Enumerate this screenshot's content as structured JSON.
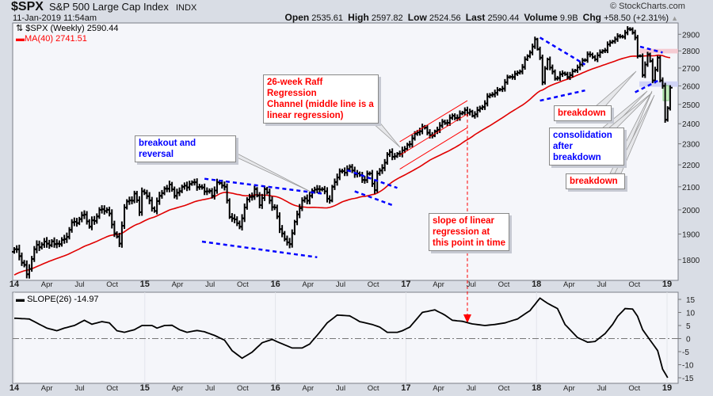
{
  "header": {
    "symbol": "$SPX",
    "name": "S&P 500 Large Cap Index",
    "exchange": "INDX",
    "datetime": "11-Jan-2019 11:54am",
    "copyright": "© StockCharts.com",
    "quote": {
      "open_label": "Open",
      "open": "2535.61",
      "high_label": "High",
      "high": "2597.82",
      "low_label": "Low",
      "low": "2524.56",
      "last_label": "Last",
      "last": "2590.44",
      "volume_label": "Volume",
      "volume": "9.9B",
      "chg_label": "Chg",
      "chg": "+58.50 (+2.31%)",
      "chg_icon": "up-triangle-icon"
    }
  },
  "legend": {
    "price": "$SPX (Weekly) 2590.44",
    "ma": "MA(40) 2741.51",
    "slope": "SLOPE(26) -14.97"
  },
  "colors": {
    "price": "#000000",
    "ma": "#e00000",
    "trend": "#0000ff",
    "channel": "#ff0000",
    "plot_bg": "#f5f6fa"
  },
  "annotations": {
    "raff": [
      "26-week Raff Regression",
      "Channel (middle line is a",
      "linear regression)"
    ],
    "breakout": "breakout and reversal",
    "slope_note": [
      "slope of linear",
      "regression at",
      "this point in time"
    ],
    "breakdown1": "breakdown",
    "consolidation": [
      "consolidation",
      "after breakdown"
    ],
    "breakdown2": "breakdown"
  },
  "chart_data": [
    {
      "type": "ohlc",
      "title": "$SPX (Weekly)",
      "scale": "log",
      "ylim": [
        1720,
        2960
      ],
      "yticks": [
        1800,
        1900,
        2000,
        2100,
        2200,
        2300,
        2400,
        2500,
        2600,
        2700,
        2800,
        2900
      ],
      "xticks": [
        "14",
        "Apr",
        "Jul",
        "Oct",
        "15",
        "Apr",
        "Jul",
        "Oct",
        "16",
        "Apr",
        "Jul",
        "Oct",
        "17",
        "Apr",
        "Jul",
        "Oct",
        "18",
        "Apr",
        "Jul",
        "Oct",
        "19"
      ],
      "x_unit": "weeks since first week of Jan 2014",
      "close_keypoints": [
        [
          0,
          1840
        ],
        [
          4,
          1780
        ],
        [
          5,
          1745
        ],
        [
          8,
          1840
        ],
        [
          12,
          1870
        ],
        [
          16,
          1860
        ],
        [
          20,
          1880
        ],
        [
          24,
          1950
        ],
        [
          28,
          1980
        ],
        [
          30,
          1930
        ],
        [
          34,
          2000
        ],
        [
          37,
          2000
        ],
        [
          41,
          1890
        ],
        [
          42,
          1862
        ],
        [
          44,
          2010
        ],
        [
          48,
          2070
        ],
        [
          50,
          1990
        ],
        [
          51,
          2080
        ],
        [
          54,
          2040
        ],
        [
          56,
          1995
        ],
        [
          58,
          2060
        ],
        [
          62,
          2110
        ],
        [
          64,
          2060
        ],
        [
          67,
          2100
        ],
        [
          71,
          2120
        ],
        [
          74,
          2100
        ],
        [
          77,
          2080
        ],
        [
          79,
          2060
        ],
        [
          81,
          2120
        ],
        [
          84,
          2100
        ],
        [
          86,
          1970
        ],
        [
          88,
          1960
        ],
        [
          90,
          1930
        ],
        [
          92,
          2010
        ],
        [
          96,
          2090
        ],
        [
          98,
          2020
        ],
        [
          100,
          2090
        ],
        [
          102,
          2040
        ],
        [
          104,
          2010
        ],
        [
          106,
          1920
        ],
        [
          108,
          1880
        ],
        [
          110,
          1860
        ],
        [
          112,
          1950
        ],
        [
          115,
          2040
        ],
        [
          118,
          2060
        ],
        [
          121,
          2090
        ],
        [
          124,
          2080
        ],
        [
          126,
          2040
        ],
        [
          127,
          2100
        ],
        [
          130,
          2170
        ],
        [
          133,
          2180
        ],
        [
          137,
          2160
        ],
        [
          140,
          2130
        ],
        [
          142,
          2160
        ],
        [
          144,
          2085
        ],
        [
          145,
          2160
        ],
        [
          148,
          2210
        ],
        [
          150,
          2260
        ],
        [
          152,
          2240
        ],
        [
          156,
          2275
        ],
        [
          160,
          2350
        ],
        [
          164,
          2380
        ],
        [
          167,
          2340
        ],
        [
          170,
          2390
        ],
        [
          174,
          2430
        ],
        [
          177,
          2430
        ],
        [
          180,
          2470
        ],
        [
          183,
          2440
        ],
        [
          186,
          2480
        ],
        [
          190,
          2550
        ],
        [
          194,
          2580
        ],
        [
          198,
          2650
        ],
        [
          202,
          2680
        ],
        [
          206,
          2790
        ],
        [
          208,
          2870
        ],
        [
          210,
          2760
        ],
        [
          211,
          2620
        ],
        [
          213,
          2750
        ],
        [
          216,
          2640
        ],
        [
          219,
          2670
        ],
        [
          222,
          2660
        ],
        [
          226,
          2720
        ],
        [
          229,
          2780
        ],
        [
          232,
          2750
        ],
        [
          235,
          2800
        ],
        [
          238,
          2850
        ],
        [
          240,
          2870
        ],
        [
          244,
          2910
        ],
        [
          246,
          2930
        ],
        [
          247,
          2910
        ],
        [
          248,
          2880
        ],
        [
          249,
          2770
        ],
        [
          250,
          2770
        ],
        [
          251,
          2660
        ],
        [
          252,
          2720
        ],
        [
          253,
          2780
        ],
        [
          254,
          2740
        ],
        [
          255,
          2630
        ],
        [
          256,
          2690
        ],
        [
          257,
          2760
        ],
        [
          258,
          2630
        ],
        [
          259,
          2600
        ],
        [
          260,
          2420
        ],
        [
          261,
          2480
        ],
        [
          262,
          2590
        ]
      ],
      "ma_period": 40,
      "trendlines": [
        {
          "name": "2015-upper",
          "from": [
            76,
            2136
          ],
          "to": [
            123,
            2070
          ]
        },
        {
          "name": "2015-lower",
          "from": [
            75,
            1870
          ],
          "to": [
            121,
            1809
          ]
        },
        {
          "name": "2016-flag-upper",
          "from": [
            133,
            2175
          ],
          "to": [
            153,
            2095
          ]
        },
        {
          "name": "2016-flag-lower",
          "from": [
            136,
            2080
          ],
          "to": [
            151,
            2020
          ]
        },
        {
          "name": "2018-wedge-upper",
          "from": [
            210,
            2880
          ],
          "to": [
            228,
            2720
          ]
        },
        {
          "name": "2018-wedge-lower",
          "from": [
            210,
            2520
          ],
          "to": [
            228,
            2575
          ]
        },
        {
          "name": "2018-top-upper",
          "from": [
            250,
            2825
          ],
          "to": [
            259,
            2790
          ]
        },
        {
          "name": "2018-consol-lower",
          "from": [
            248,
            2565
          ],
          "to": [
            258,
            2635
          ]
        }
      ],
      "raff_channel": {
        "from_week": 154,
        "to_week": 181,
        "upper": [
          2310,
          2520
        ],
        "middle": [
          2245,
          2450
        ],
        "lower": [
          2180,
          2380
        ]
      },
      "bands": [
        {
          "name": "resistance",
          "range": [
            2785,
            2812
          ],
          "color": "#f5c0c8"
        },
        {
          "name": "support",
          "range": [
            2595,
            2625
          ],
          "color": "#c8ccf5"
        }
      ],
      "marker_week": 181
    },
    {
      "type": "line",
      "title": "SLOPE(26)",
      "ylim": [
        -17,
        17
      ],
      "yticks": [
        -15,
        -10,
        -5,
        0,
        5,
        10,
        15
      ],
      "points": [
        [
          0,
          7.8
        ],
        [
          6,
          7.5
        ],
        [
          13,
          4
        ],
        [
          17,
          3
        ],
        [
          20,
          4
        ],
        [
          24,
          5
        ],
        [
          28,
          7
        ],
        [
          31,
          5.5
        ],
        [
          35,
          6.5
        ],
        [
          38,
          6
        ],
        [
          41,
          3
        ],
        [
          44,
          2.4
        ],
        [
          48,
          3.4
        ],
        [
          51,
          5
        ],
        [
          55,
          5
        ],
        [
          57,
          4
        ],
        [
          60,
          5
        ],
        [
          63,
          5.1
        ],
        [
          66,
          3.4
        ],
        [
          69,
          2.4
        ],
        [
          73,
          3.1
        ],
        [
          76,
          2.6
        ],
        [
          80,
          1.2
        ],
        [
          84,
          -0.6
        ],
        [
          87,
          -4.6
        ],
        [
          91,
          -7.5
        ],
        [
          95,
          -5.2
        ],
        [
          99,
          -1.6
        ],
        [
          103,
          -0.3
        ],
        [
          106,
          -1.6
        ],
        [
          111,
          -3.6
        ],
        [
          115,
          -3.6
        ],
        [
          118,
          -2.1
        ],
        [
          122,
          2.4
        ],
        [
          125,
          6
        ],
        [
          129,
          9
        ],
        [
          134,
          8.7
        ],
        [
          138,
          6.5
        ],
        [
          143,
          5.4
        ],
        [
          146,
          4.4
        ],
        [
          149,
          2.4
        ],
        [
          153,
          2.4
        ],
        [
          155,
          3
        ],
        [
          158,
          4.4
        ],
        [
          163,
          10
        ],
        [
          168,
          11
        ],
        [
          172,
          9
        ],
        [
          175,
          7
        ],
        [
          179,
          6.6
        ],
        [
          183,
          5.6
        ],
        [
          188,
          5
        ],
        [
          192,
          5.4
        ],
        [
          196,
          6
        ],
        [
          201,
          7.5
        ],
        [
          206,
          10.7
        ],
        [
          210,
          15.5
        ],
        [
          213,
          13.5
        ],
        [
          217,
          11.5
        ],
        [
          220,
          5.4
        ],
        [
          225,
          0.4
        ],
        [
          229,
          -1.4
        ],
        [
          232,
          -1.1
        ],
        [
          236,
          1.9
        ],
        [
          239,
          5.4
        ],
        [
          241,
          8.5
        ],
        [
          244,
          11.5
        ],
        [
          247,
          11.3
        ],
        [
          249,
          8.5
        ],
        [
          251,
          3.4
        ],
        [
          254,
          -0.6
        ],
        [
          257,
          -4.6
        ],
        [
          259,
          -11.7
        ],
        [
          261,
          -14.97
        ]
      ]
    }
  ]
}
